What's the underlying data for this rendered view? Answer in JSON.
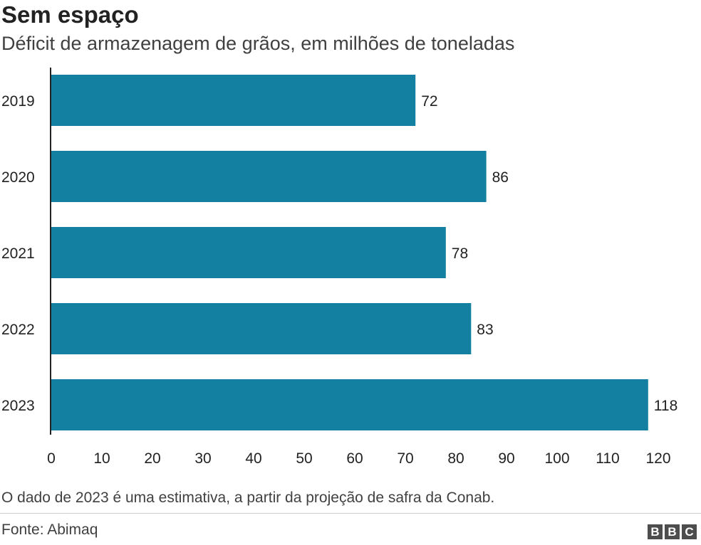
{
  "chart_data": {
    "type": "bar",
    "orientation": "horizontal",
    "title": "Sem espaço",
    "subtitle": "Déficit de armazenagem de grãos, em milhões de toneladas",
    "categories": [
      "2019",
      "2020",
      "2021",
      "2022",
      "2023"
    ],
    "values": [
      72,
      86,
      78,
      83,
      118
    ],
    "data_labels": [
      "72",
      "86",
      "78",
      "83",
      "118"
    ],
    "xlim": [
      0,
      120
    ],
    "x_ticks": [
      0,
      10,
      20,
      30,
      40,
      50,
      60,
      70,
      80,
      90,
      100,
      110,
      120
    ],
    "bar_color": "#1380a1",
    "grid": false,
    "legend": "none"
  },
  "footer": {
    "note": "O dado de 2023 é uma estimativa, a partir da projeção de safra da Conab.",
    "source": "Fonte: Abimaq",
    "logo": [
      "B",
      "B",
      "C"
    ]
  }
}
